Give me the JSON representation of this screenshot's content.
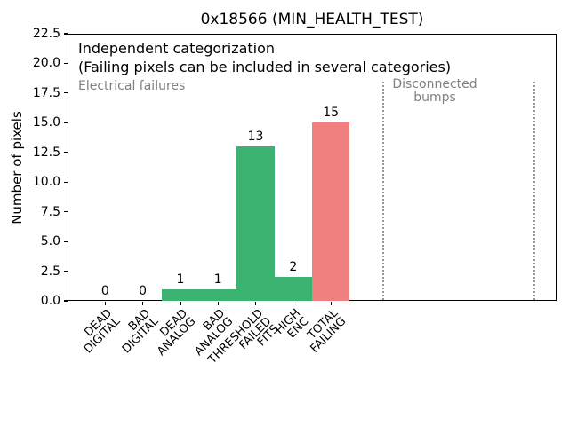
{
  "title": "0x18566 (MIN_HEALTH_TEST)",
  "ylabel": "Number of pixels",
  "annotations": {
    "categorization_line1": "Independent categorization",
    "categorization_line2": "(Failing pixels can be included in several categories)",
    "electrical_label": "Electrical failures",
    "disconnected_label": "Disconnected\nbumps"
  },
  "colors": {
    "pass_bar_green": "#3cb371",
    "total_bar_red": "#f08080",
    "gray_text": "#808080",
    "vline_gray": "#969696"
  },
  "chart_data": {
    "type": "bar",
    "title": "0x18566 (MIN_HEALTH_TEST)",
    "xlabel": "",
    "ylabel": "Number of pixels",
    "categories": [
      "DEAD\nDIGITAL",
      "BAD\nDIGITAL",
      "DEAD\nANALOG",
      "BAD\nANALOG",
      "THRESHOLD\nFAILED\nFITS",
      "HIGH\nENC",
      "TOTAL\nFAILING"
    ],
    "values": [
      0,
      0,
      1,
      1,
      13,
      2,
      15
    ],
    "bar_value_labels": [
      "0",
      "0",
      "1",
      "1",
      "13",
      "2",
      "15"
    ],
    "bar_colors": [
      "#3cb371",
      "#3cb371",
      "#3cb371",
      "#3cb371",
      "#3cb371",
      "#3cb371",
      "#f08080"
    ],
    "bar_width": 1.0,
    "ylim": [
      0,
      22.5
    ],
    "yticks": [
      0.0,
      2.5,
      5.0,
      7.5,
      10.0,
      12.5,
      15.0,
      17.5,
      20.0,
      22.5
    ],
    "ytick_labels": [
      "0.0",
      "2.5",
      "5.0",
      "7.5",
      "10.0",
      "12.5",
      "15.0",
      "17.5",
      "20.0",
      "22.5"
    ],
    "xlim": [
      -1,
      12
    ],
    "xtick_rotation_deg": 45,
    "grid": false,
    "legend": "none",
    "vlines_x": [
      7.4,
      11.4
    ],
    "vline_style": "dotted",
    "annotations_in_plot": [
      "Independent categorization",
      "(Failing pixels can be included in several categories)",
      "Electrical failures",
      "Disconnected bumps"
    ]
  }
}
